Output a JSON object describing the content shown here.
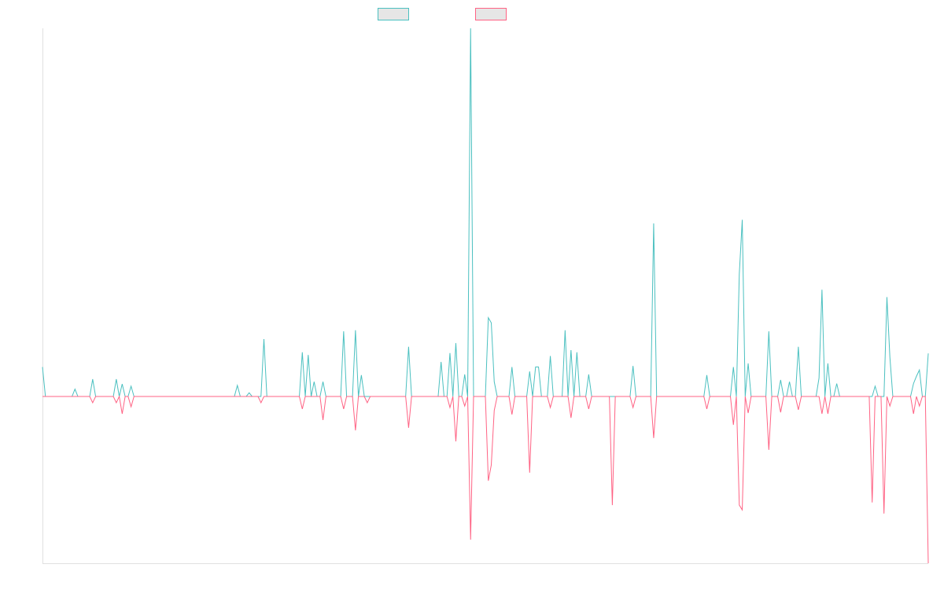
{
  "chart_data": {
    "type": "line",
    "title": "",
    "xlabel": "",
    "ylabel": "",
    "xlim": [
      0,
      300
    ],
    "ylim": [
      -0.453,
      1.0
    ],
    "grid": false,
    "legend_position": "top",
    "baseline_default": 0,
    "series": [
      {
        "name": "",
        "color": "#4bc0c0",
        "points": [
          [
            0,
            0.08
          ],
          [
            11,
            0.02
          ],
          [
            17,
            0.047
          ],
          [
            25,
            0.047
          ],
          [
            27,
            0.034
          ],
          [
            30,
            0.028
          ],
          [
            66,
            0.03
          ],
          [
            70,
            0.01
          ],
          [
            75,
            0.156
          ],
          [
            88,
            0.12
          ],
          [
            90,
            0.113
          ],
          [
            92,
            0.04
          ],
          [
            95,
            0.04
          ],
          [
            102,
            0.177
          ],
          [
            106,
            0.18
          ],
          [
            108,
            0.058
          ],
          [
            124,
            0.135
          ],
          [
            135,
            0.094
          ],
          [
            138,
            0.118
          ],
          [
            140,
            0.145
          ],
          [
            143,
            0.06
          ],
          [
            145,
            1.0
          ],
          [
            151,
            0.214
          ],
          [
            152,
            0.2
          ],
          [
            153,
            0.04
          ],
          [
            159,
            0.08
          ],
          [
            165,
            0.068
          ],
          [
            167,
            0.08
          ],
          [
            168,
            0.08
          ],
          [
            172,
            0.11
          ],
          [
            177,
            0.18
          ],
          [
            179,
            0.126
          ],
          [
            181,
            0.12
          ],
          [
            185,
            0.06
          ],
          [
            200,
            0.083
          ],
          [
            207,
            0.47
          ],
          [
            225,
            0.058
          ],
          [
            234,
            0.08
          ],
          [
            236,
            0.333
          ],
          [
            237,
            0.48
          ],
          [
            239,
            0.09
          ],
          [
            246,
            0.177
          ],
          [
            250,
            0.045
          ],
          [
            253,
            0.04
          ],
          [
            256,
            0.135
          ],
          [
            263,
            0.05
          ],
          [
            264,
            0.29
          ],
          [
            266,
            0.09
          ],
          [
            269,
            0.035
          ],
          [
            282,
            0.028
          ],
          [
            286,
            0.27
          ],
          [
            287,
            0.107
          ],
          [
            295,
            0.035
          ],
          [
            296,
            0.055
          ],
          [
            297,
            0.072
          ],
          [
            300,
            0.117
          ]
        ]
      },
      {
        "name": "",
        "color": "#ff6384",
        "points": [
          [
            17,
            -0.017
          ],
          [
            25,
            -0.017
          ],
          [
            27,
            -0.047
          ],
          [
            30,
            -0.028
          ],
          [
            74,
            -0.017
          ],
          [
            88,
            -0.034
          ],
          [
            95,
            -0.064
          ],
          [
            102,
            -0.034
          ],
          [
            106,
            -0.092
          ],
          [
            110,
            -0.017
          ],
          [
            124,
            -0.085
          ],
          [
            138,
            -0.03
          ],
          [
            140,
            -0.122
          ],
          [
            143,
            -0.026
          ],
          [
            145,
            -0.389
          ],
          [
            151,
            -0.229
          ],
          [
            152,
            -0.186
          ],
          [
            153,
            -0.038
          ],
          [
            159,
            -0.049
          ],
          [
            165,
            -0.207
          ],
          [
            172,
            -0.03
          ],
          [
            179,
            -0.058
          ],
          [
            185,
            -0.034
          ],
          [
            193,
            -0.295
          ],
          [
            200,
            -0.03
          ],
          [
            207,
            -0.113
          ],
          [
            225,
            -0.034
          ],
          [
            234,
            -0.077
          ],
          [
            236,
            -0.295
          ],
          [
            237,
            -0.308
          ],
          [
            239,
            -0.045
          ],
          [
            246,
            -0.145
          ],
          [
            250,
            -0.043
          ],
          [
            256,
            -0.036
          ],
          [
            264,
            -0.047
          ],
          [
            266,
            -0.047
          ],
          [
            281,
            -0.288
          ],
          [
            285,
            -0.318
          ],
          [
            287,
            -0.026
          ],
          [
            295,
            -0.047
          ],
          [
            297,
            -0.026
          ],
          [
            300,
            -0.453
          ]
        ]
      }
    ]
  }
}
